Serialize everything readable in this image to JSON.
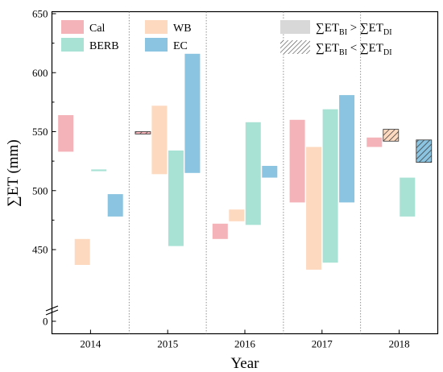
{
  "chart_data": {
    "type": "floating-bar",
    "xlabel": "Year",
    "ylabel": "∑ET (mm)",
    "categories": [
      "2014",
      "2015",
      "2016",
      "2017",
      "2018"
    ],
    "y_ticks": [
      0,
      450,
      500,
      550,
      600,
      650
    ],
    "y_axis_break": true,
    "ylim": [
      420,
      650
    ],
    "grid": "dotted vertical separators between years",
    "legend_position": "top",
    "series": [
      {
        "name": "Cal",
        "color": "#f4b3b8",
        "edge": "#e8989f",
        "bars": [
          {
            "year": "2014",
            "low": 533,
            "high": 564,
            "pattern": "solid"
          },
          {
            "year": "2015",
            "low": 548,
            "high": 550,
            "pattern": "hatched"
          },
          {
            "year": "2016",
            "low": 459,
            "high": 472,
            "pattern": "solid"
          },
          {
            "year": "2017",
            "low": 490,
            "high": 560,
            "pattern": "solid"
          },
          {
            "year": "2018",
            "low": 537,
            "high": 545,
            "pattern": "solid"
          }
        ]
      },
      {
        "name": "WB",
        "color": "#fdd9bf",
        "edge": "#e6b48f",
        "bars": [
          {
            "year": "2014",
            "low": 437,
            "high": 459,
            "pattern": "solid"
          },
          {
            "year": "2015",
            "low": 514,
            "high": 572,
            "pattern": "solid"
          },
          {
            "year": "2016",
            "low": 474,
            "high": 484,
            "pattern": "solid"
          },
          {
            "year": "2017",
            "low": 433,
            "high": 537,
            "pattern": "solid"
          },
          {
            "year": "2018",
            "low": 542,
            "high": 552,
            "pattern": "hatched"
          }
        ]
      },
      {
        "name": "BERB",
        "color": "#a8e2d4",
        "edge": "#7fcfbd",
        "bars": [
          {
            "year": "2014",
            "low": 516.5,
            "high": 518,
            "pattern": "solid"
          },
          {
            "year": "2015",
            "low": 453,
            "high": 534,
            "pattern": "solid"
          },
          {
            "year": "2016",
            "low": 471,
            "high": 558,
            "pattern": "solid"
          },
          {
            "year": "2017",
            "low": 439,
            "high": 569,
            "pattern": "solid"
          },
          {
            "year": "2018",
            "low": 478,
            "high": 511,
            "pattern": "solid"
          }
        ]
      },
      {
        "name": "EC",
        "color": "#8bc4e0",
        "edge": "#5fa8cf",
        "bars": [
          {
            "year": "2014",
            "low": 478,
            "high": 497,
            "pattern": "solid"
          },
          {
            "year": "2015",
            "low": 515,
            "high": 616,
            "pattern": "solid"
          },
          {
            "year": "2016",
            "low": 511,
            "high": 521,
            "pattern": "solid"
          },
          {
            "year": "2017",
            "low": 490,
            "high": 581,
            "pattern": "solid"
          },
          {
            "year": "2018",
            "low": 524,
            "high": 543,
            "pattern": "hatched"
          }
        ]
      }
    ],
    "pattern_legend": {
      "solid": {
        "prefix": "∑ET",
        "sub1": "BI",
        "op": " > ",
        "mid": "∑ET",
        "sub2": "DI"
      },
      "hatched": {
        "prefix": "∑ET",
        "sub1": "BI",
        "op": " < ",
        "mid": "∑ET",
        "sub2": "DI"
      }
    }
  }
}
